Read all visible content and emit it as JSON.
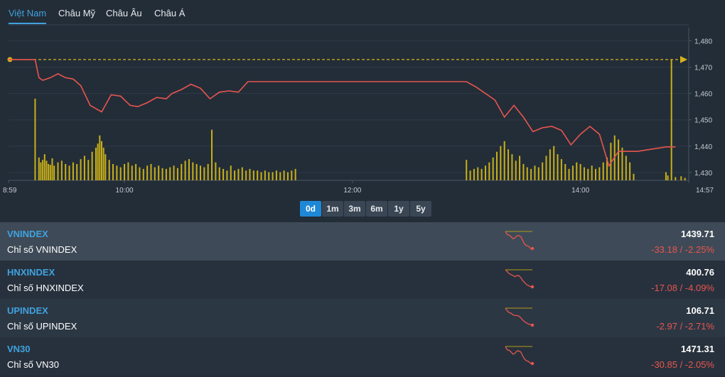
{
  "tabs": [
    {
      "label": "Việt Nam",
      "active": true
    },
    {
      "label": "Châu Mỹ",
      "active": false
    },
    {
      "label": "Châu Âu",
      "active": false
    },
    {
      "label": "Châu Á",
      "active": false
    }
  ],
  "chart_data": {
    "type": "line",
    "y_ticks": [
      "1,480",
      "1,470",
      "1,460",
      "1,450",
      "1,440",
      "1,430"
    ],
    "ylim": [
      1427,
      1485
    ],
    "x_ticks": [
      "8:59",
      "10:00",
      "12:00",
      "14:00",
      "14:57"
    ],
    "reference_value": 1472.9,
    "series": [
      {
        "color": "#e8554e",
        "x": [
          "8:59",
          "9:13",
          "9:15",
          "9:17",
          "9:21",
          "9:25",
          "9:29",
          "9:33",
          "9:37",
          "9:42",
          "9:48",
          "9:53",
          "9:58",
          "10:03",
          "10:07",
          "10:12",
          "10:17",
          "10:22",
          "10:25",
          "10:30",
          "10:35",
          "10:40",
          "10:45",
          "10:50",
          "10:55",
          "11:00",
          "11:05",
          "11:10",
          "11:15",
          "11:20",
          "11:25",
          "11:30",
          "13:00",
          "13:05",
          "13:10",
          "13:15",
          "13:20",
          "13:25",
          "13:30",
          "13:35",
          "13:40",
          "13:45",
          "13:50",
          "13:55",
          "14:00",
          "14:05",
          "14:10",
          "14:15",
          "14:20",
          "14:25",
          "14:30",
          "14:45",
          "14:50"
        ],
        "values": [
          1472.9,
          1472.9,
          1466.0,
          1465.0,
          1466.0,
          1467.5,
          1466.0,
          1465.5,
          1463.0,
          1455.5,
          1453.0,
          1459.5,
          1459.0,
          1455.5,
          1455.0,
          1456.5,
          1458.5,
          1458.0,
          1460.0,
          1461.5,
          1463.5,
          1462.0,
          1458.0,
          1460.5,
          1461.0,
          1460.5,
          1464.5,
          1464.5,
          1464.5,
          1464.5,
          1464.5,
          1464.5,
          1464.5,
          1462.5,
          1460.0,
          1457.5,
          1451.0,
          1455.5,
          1451.0,
          1445.5,
          1447.0,
          1447.5,
          1446.0,
          1440.5,
          1444.5,
          1447.5,
          1444.5,
          1432.5,
          1438.0,
          1438.0,
          1438.0,
          1439.7,
          1439.7
        ]
      }
    ],
    "volume": [
      {
        "x": "9:13",
        "v": 100
      },
      {
        "x": "9:15",
        "v": 28
      },
      {
        "x": "9:16",
        "v": 22
      },
      {
        "x": "9:17",
        "v": 25
      },
      {
        "x": "9:18",
        "v": 32
      },
      {
        "x": "9:19",
        "v": 24
      },
      {
        "x": "9:20",
        "v": 20
      },
      {
        "x": "9:21",
        "v": 19
      },
      {
        "x": "9:22",
        "v": 27
      },
      {
        "x": "9:23",
        "v": 18
      },
      {
        "x": "9:25",
        "v": 22
      },
      {
        "x": "9:27",
        "v": 24
      },
      {
        "x": "9:29",
        "v": 20
      },
      {
        "x": "9:31",
        "v": 18
      },
      {
        "x": "9:33",
        "v": 22
      },
      {
        "x": "9:35",
        "v": 20
      },
      {
        "x": "9:37",
        "v": 26
      },
      {
        "x": "9:39",
        "v": 30
      },
      {
        "x": "9:41",
        "v": 25
      },
      {
        "x": "9:43",
        "v": 35
      },
      {
        "x": "9:45",
        "v": 40
      },
      {
        "x": "9:46",
        "v": 45
      },
      {
        "x": "9:47",
        "v": 55
      },
      {
        "x": "9:48",
        "v": 48
      },
      {
        "x": "9:49",
        "v": 40
      },
      {
        "x": "9:50",
        "v": 32
      },
      {
        "x": "9:52",
        "v": 25
      },
      {
        "x": "9:54",
        "v": 20
      },
      {
        "x": "9:56",
        "v": 18
      },
      {
        "x": "9:58",
        "v": 16
      },
      {
        "x": "10:00",
        "v": 20
      },
      {
        "x": "10:02",
        "v": 22
      },
      {
        "x": "10:04",
        "v": 18
      },
      {
        "x": "10:06",
        "v": 20
      },
      {
        "x": "10:08",
        "v": 16
      },
      {
        "x": "10:10",
        "v": 14
      },
      {
        "x": "10:12",
        "v": 18
      },
      {
        "x": "10:14",
        "v": 20
      },
      {
        "x": "10:16",
        "v": 16
      },
      {
        "x": "10:18",
        "v": 18
      },
      {
        "x": "10:20",
        "v": 15
      },
      {
        "x": "10:22",
        "v": 14
      },
      {
        "x": "10:24",
        "v": 16
      },
      {
        "x": "10:26",
        "v": 18
      },
      {
        "x": "10:28",
        "v": 15
      },
      {
        "x": "10:30",
        "v": 20
      },
      {
        "x": "10:32",
        "v": 24
      },
      {
        "x": "10:34",
        "v": 26
      },
      {
        "x": "10:36",
        "v": 22
      },
      {
        "x": "10:38",
        "v": 20
      },
      {
        "x": "10:40",
        "v": 18
      },
      {
        "x": "10:42",
        "v": 16
      },
      {
        "x": "10:44",
        "v": 20
      },
      {
        "x": "10:46",
        "v": 62
      },
      {
        "x": "10:48",
        "v": 22
      },
      {
        "x": "10:50",
        "v": 16
      },
      {
        "x": "10:52",
        "v": 14
      },
      {
        "x": "10:54",
        "v": 12
      },
      {
        "x": "10:56",
        "v": 18
      },
      {
        "x": "10:58",
        "v": 12
      },
      {
        "x": "11:00",
        "v": 14
      },
      {
        "x": "11:02",
        "v": 16
      },
      {
        "x": "11:04",
        "v": 12
      },
      {
        "x": "11:06",
        "v": 14
      },
      {
        "x": "11:08",
        "v": 12
      },
      {
        "x": "11:10",
        "v": 12
      },
      {
        "x": "11:12",
        "v": 10
      },
      {
        "x": "11:14",
        "v": 12
      },
      {
        "x": "11:16",
        "v": 10
      },
      {
        "x": "11:18",
        "v": 10
      },
      {
        "x": "11:20",
        "v": 12
      },
      {
        "x": "11:22",
        "v": 10
      },
      {
        "x": "11:24",
        "v": 12
      },
      {
        "x": "11:26",
        "v": 10
      },
      {
        "x": "11:28",
        "v": 12
      },
      {
        "x": "11:30",
        "v": 14
      },
      {
        "x": "13:00",
        "v": 25
      },
      {
        "x": "13:02",
        "v": 12
      },
      {
        "x": "13:04",
        "v": 14
      },
      {
        "x": "13:06",
        "v": 16
      },
      {
        "x": "13:08",
        "v": 14
      },
      {
        "x": "13:10",
        "v": 18
      },
      {
        "x": "13:12",
        "v": 22
      },
      {
        "x": "13:14",
        "v": 28
      },
      {
        "x": "13:16",
        "v": 35
      },
      {
        "x": "13:18",
        "v": 42
      },
      {
        "x": "13:20",
        "v": 48
      },
      {
        "x": "13:22",
        "v": 38
      },
      {
        "x": "13:24",
        "v": 32
      },
      {
        "x": "13:26",
        "v": 24
      },
      {
        "x": "13:28",
        "v": 30
      },
      {
        "x": "13:30",
        "v": 20
      },
      {
        "x": "13:32",
        "v": 16
      },
      {
        "x": "13:34",
        "v": 14
      },
      {
        "x": "13:36",
        "v": 18
      },
      {
        "x": "13:38",
        "v": 16
      },
      {
        "x": "13:40",
        "v": 22
      },
      {
        "x": "13:42",
        "v": 30
      },
      {
        "x": "13:44",
        "v": 38
      },
      {
        "x": "13:46",
        "v": 42
      },
      {
        "x": "13:48",
        "v": 32
      },
      {
        "x": "13:50",
        "v": 26
      },
      {
        "x": "13:52",
        "v": 20
      },
      {
        "x": "13:54",
        "v": 14
      },
      {
        "x": "13:56",
        "v": 18
      },
      {
        "x": "13:58",
        "v": 22
      },
      {
        "x": "14:00",
        "v": 20
      },
      {
        "x": "14:02",
        "v": 16
      },
      {
        "x": "14:04",
        "v": 14
      },
      {
        "x": "14:06",
        "v": 18
      },
      {
        "x": "14:08",
        "v": 14
      },
      {
        "x": "14:10",
        "v": 16
      },
      {
        "x": "14:12",
        "v": 22
      },
      {
        "x": "14:14",
        "v": 28
      },
      {
        "x": "14:16",
        "v": 46
      },
      {
        "x": "14:18",
        "v": 55
      },
      {
        "x": "14:20",
        "v": 50
      },
      {
        "x": "14:22",
        "v": 40
      },
      {
        "x": "14:24",
        "v": 30
      },
      {
        "x": "14:26",
        "v": 22
      },
      {
        "x": "14:28",
        "v": 8
      },
      {
        "x": "14:45",
        "v": 10
      },
      {
        "x": "14:46",
        "v": 6
      },
      {
        "x": "14:50",
        "v": 4
      },
      {
        "x": "14:53",
        "v": 5
      },
      {
        "x": "14:55",
        "v": 3
      }
    ],
    "last_value": 1439.7,
    "grid": true
  },
  "ranges": [
    {
      "label": "0d",
      "active": true
    },
    {
      "label": "1m",
      "active": false
    },
    {
      "label": "3m",
      "active": false
    },
    {
      "label": "6m",
      "active": false
    },
    {
      "label": "1y",
      "active": false
    },
    {
      "label": "5y",
      "active": false
    }
  ],
  "indices": [
    {
      "symbol": "VNINDEX",
      "name": "Chỉ số VNINDEX",
      "price": "1439.71",
      "change": "-33.18 / -2.25%",
      "selected": true,
      "spark": [
        1472,
        1466,
        1465,
        1462,
        1458,
        1460,
        1464,
        1464,
        1462,
        1455,
        1448,
        1445,
        1444,
        1440,
        1439.7
      ]
    },
    {
      "symbol": "HNXINDEX",
      "name": "Chỉ số HNXINDEX",
      "price": "400.76",
      "change": "-17.08 / -4.09%",
      "selected": false,
      "spark": [
        417.8,
        416,
        414,
        413,
        412,
        411,
        412,
        412,
        410,
        407,
        405,
        403,
        402,
        401,
        400.8
      ]
    },
    {
      "symbol": "UPINDEX",
      "name": "Chỉ số UPINDEX",
      "price": "106.71",
      "change": "-2.97 / -2.71%",
      "selected": false,
      "spark": [
        109.7,
        109.2,
        108.9,
        108.8,
        108.5,
        108.4,
        108.4,
        108.3,
        108.0,
        107.6,
        107.3,
        107.1,
        106.9,
        106.8,
        106.7
      ]
    },
    {
      "symbol": "VN30",
      "name": "Chỉ số VN30",
      "price": "1471.31",
      "change": "-30.85 / -2.05%",
      "selected": false,
      "spark": [
        1502,
        1496,
        1495,
        1492,
        1488,
        1490,
        1494,
        1494,
        1492,
        1485,
        1479,
        1476,
        1475,
        1472,
        1471.3
      ]
    }
  ],
  "colors": {
    "accent": "#3fa3e0",
    "down": "#e8554e",
    "volume": "#c9b018",
    "reference": "#d4b31a"
  }
}
